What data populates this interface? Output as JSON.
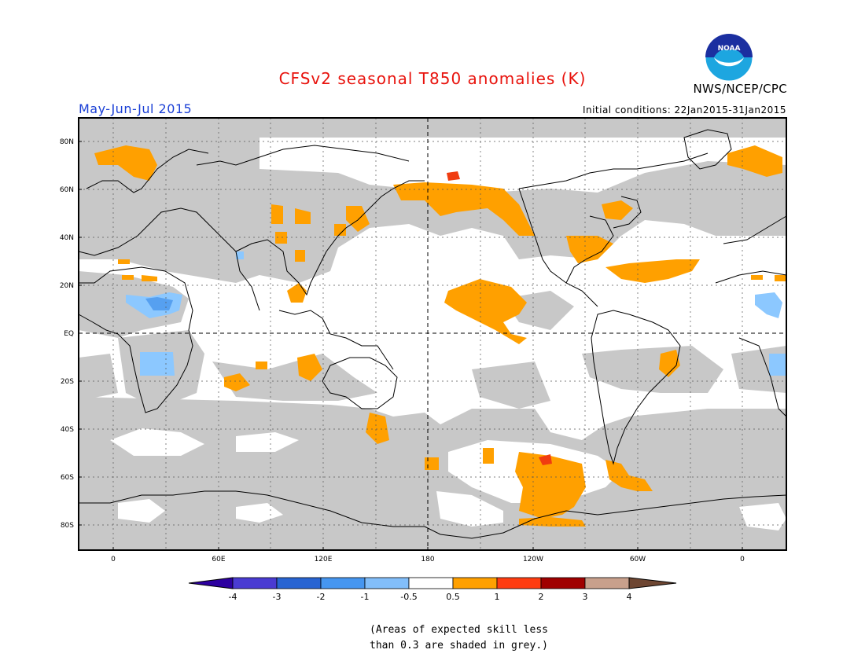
{
  "header": {
    "title": "CFSv2 seasonal T850 anomalies (K)",
    "period": "May-Jun-Jul 2015",
    "initial_conditions": "Initial conditions: 22Jan2015-31Jan2015",
    "organization": "NWS/NCEP/CPC",
    "logo_text": "NOAA"
  },
  "map": {
    "lat_ticks": [
      "80N",
      "60N",
      "40N",
      "20N",
      "EQ",
      "20S",
      "40S",
      "60S",
      "80S"
    ],
    "lon_ticks": [
      "0",
      "60E",
      "120E",
      "180",
      "120W",
      "60W",
      "0"
    ],
    "colors": {
      "land_outline": "#000000",
      "grey_low_skill": "#c8c8c8",
      "ocean_background": "#ffffff",
      "pos_0_5_to_1": "#ffa000",
      "pos_1_to_2": "#f03c10",
      "neg_0_5_to_1": "#8cc8ff",
      "neg_1_to_2": "#56a0f0"
    }
  },
  "colorbar": {
    "labels": [
      "-4",
      "-3",
      "-2",
      "-1",
      "-0.5",
      "0.5",
      "1",
      "2",
      "3",
      "4"
    ],
    "colors": [
      "#2d00a0",
      "#4a3bd2",
      "#2864d2",
      "#4696f0",
      "#82befa",
      "#ffffff",
      "#ffa000",
      "#ff3c10",
      "#a00000",
      "#c8a08c",
      "#6e4632"
    ]
  },
  "footnote": {
    "line1": "(Areas of expected skill less",
    "line2": "than 0.3 are shaded in grey.)"
  }
}
